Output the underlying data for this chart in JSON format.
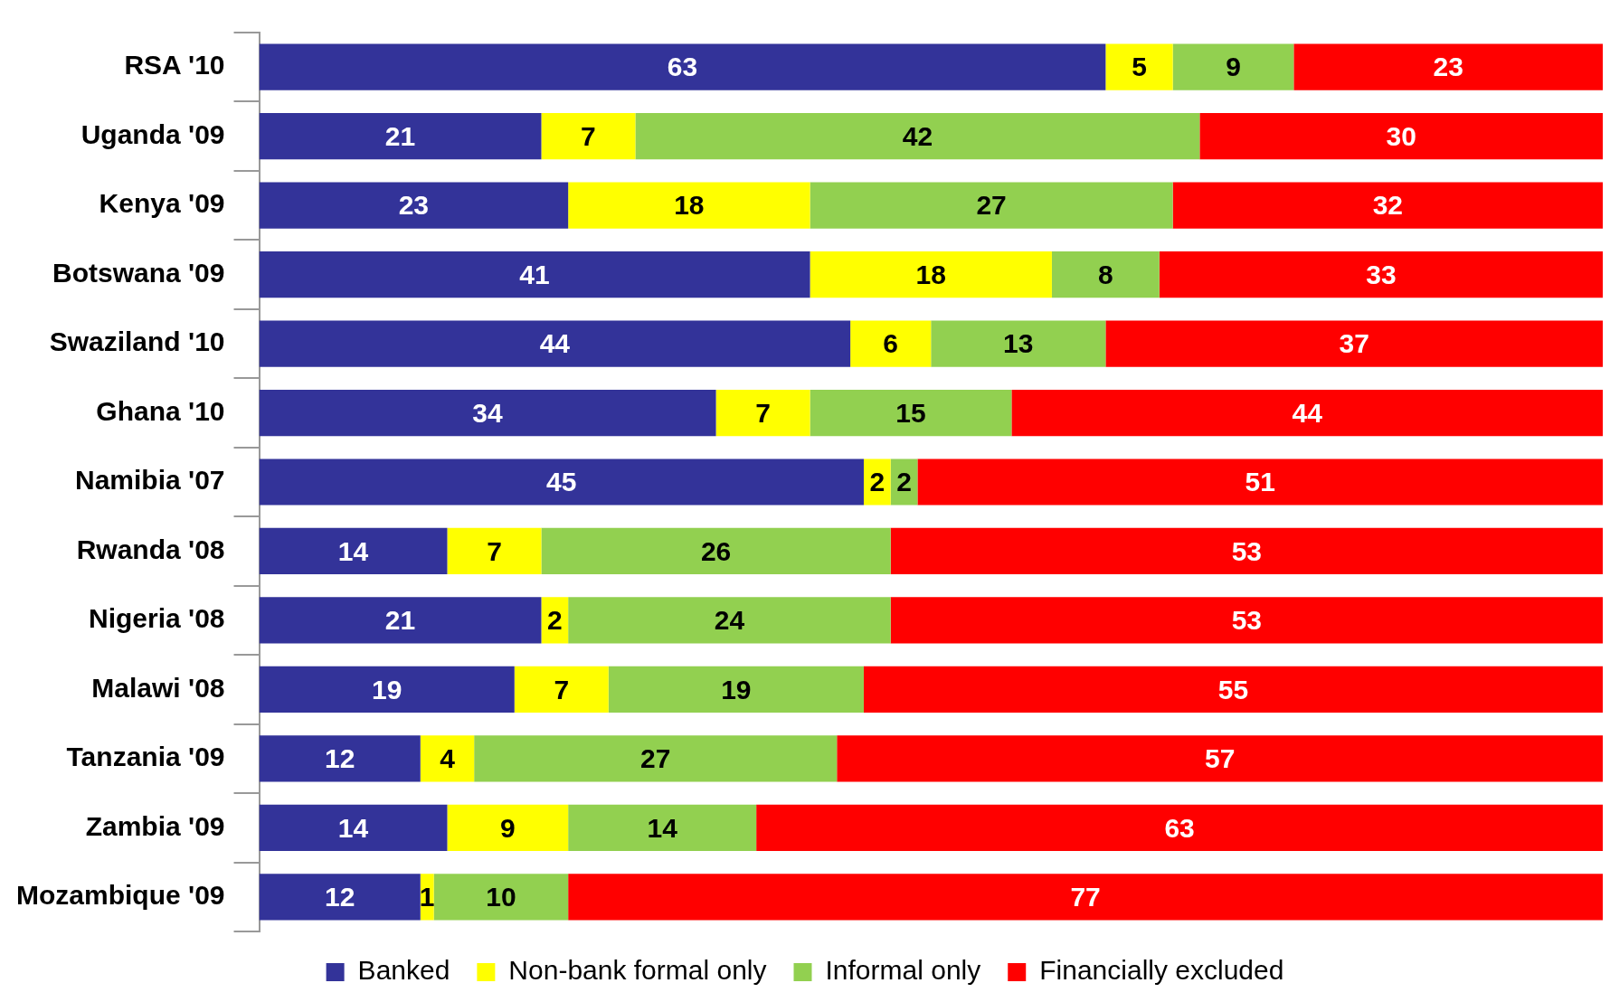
{
  "chart_data": {
    "type": "bar",
    "orientation": "horizontal",
    "stacked": true,
    "data_labels": true,
    "legend": "bottom",
    "grid": false,
    "tick_labels": "y",
    "xlim": [
      0,
      100
    ],
    "categories": [
      "RSA '10",
      "Uganda '09",
      "Kenya '09",
      "Botswana '09",
      "Swaziland '10",
      "Ghana '10",
      "Namibia '07",
      "Rwanda '08",
      "Nigeria '08",
      "Malawi '08",
      "Tanzania '09",
      "Zambia '09",
      "Mozambique '09"
    ],
    "series": [
      {
        "name": "Banked",
        "color": "#333399",
        "values": [
          63,
          21,
          23,
          41,
          44,
          34,
          45,
          14,
          21,
          19,
          12,
          14,
          12
        ]
      },
      {
        "name": "Non-bank formal only",
        "color": "#ffff00",
        "values": [
          5,
          7,
          18,
          18,
          6,
          7,
          2,
          7,
          2,
          7,
          4,
          9,
          1
        ]
      },
      {
        "name": "Informal only",
        "color": "#92d050",
        "values": [
          9,
          42,
          27,
          8,
          13,
          15,
          2,
          26,
          24,
          19,
          27,
          14,
          10
        ]
      },
      {
        "name": "Financially excluded",
        "color": "#ff0000",
        "values": [
          23,
          30,
          32,
          33,
          37,
          44,
          51,
          53,
          53,
          55,
          57,
          63,
          77
        ]
      }
    ]
  }
}
